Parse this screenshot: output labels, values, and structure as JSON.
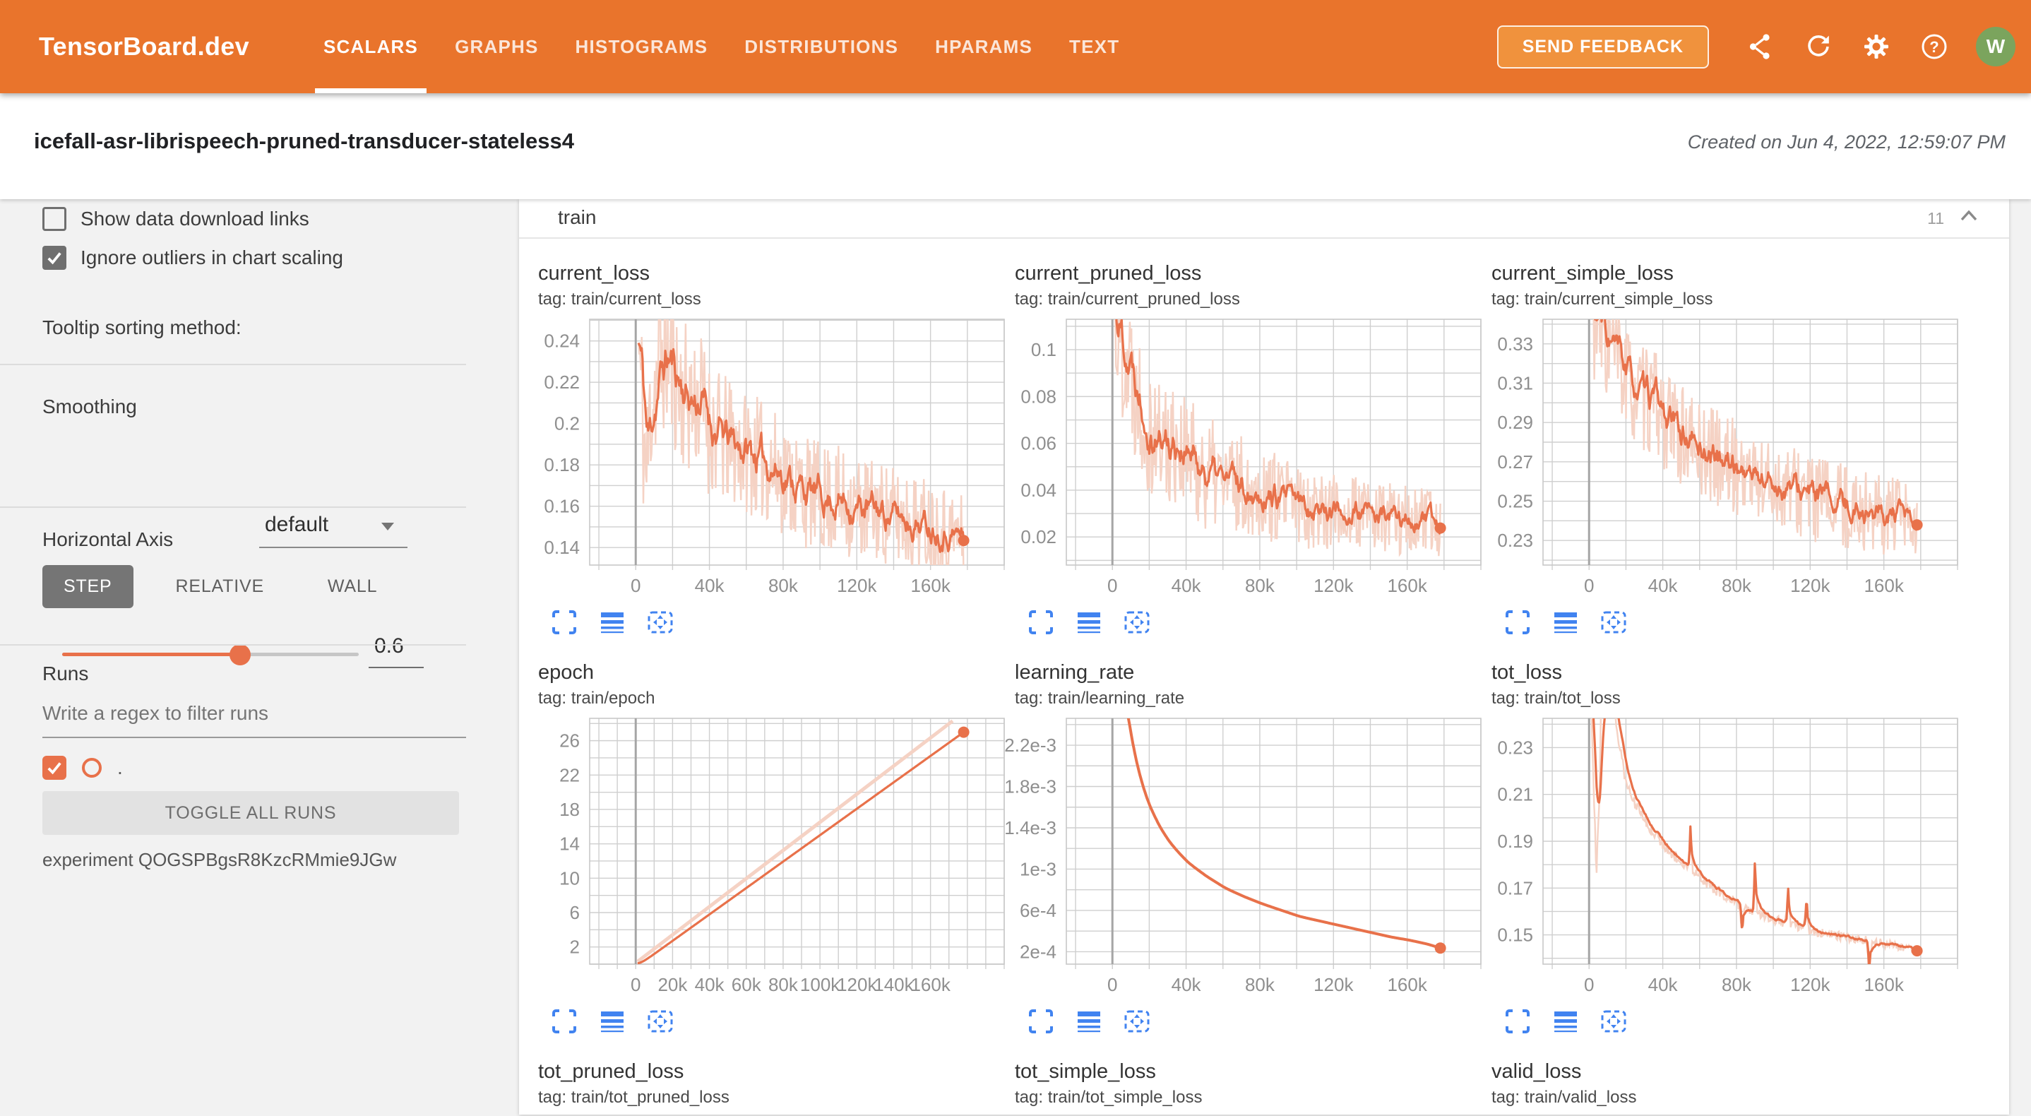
{
  "colors": {
    "navbar": "#e9742c",
    "line": "#e8714a",
    "band": "#f5d2c4",
    "blue": "#4183f0",
    "green": "#7ba45d"
  },
  "navbar": {
    "brand": "TensorBoard.dev",
    "tabs": [
      {
        "label": "SCALARS",
        "active": true
      },
      {
        "label": "GRAPHS",
        "active": false
      },
      {
        "label": "HISTOGRAMS",
        "active": false
      },
      {
        "label": "DISTRIBUTIONS",
        "active": false
      },
      {
        "label": "HPARAMS",
        "active": false
      },
      {
        "label": "TEXT",
        "active": false
      }
    ],
    "send_feedback_label": "SEND FEEDBACK",
    "icon_names": [
      "share-icon",
      "refresh-icon",
      "settings-icon",
      "help-icon"
    ],
    "avatar_initial": "W"
  },
  "header": {
    "experiment_title": "icefall-asr-librispeech-pruned-transducer-stateless4",
    "created_text": "Created on Jun 4, 2022, 12:59:07 PM"
  },
  "sidebar": {
    "show_download_label": "Show data download links",
    "show_download_checked": false,
    "ignore_outliers_label": "Ignore outliers in chart scaling",
    "ignore_outliers_checked": true,
    "tooltip_sorting_label": "Tooltip sorting method:",
    "tooltip_sorting_value": "default",
    "smoothing_label": "Smoothing",
    "smoothing_value": "0.6",
    "horizontal_axis_label": "Horizontal Axis",
    "axis_options": [
      {
        "label": "STEP",
        "active": true
      },
      {
        "label": "RELATIVE",
        "active": false
      },
      {
        "label": "WALL",
        "active": false
      }
    ],
    "runs_label": "Runs",
    "runs_filter_placeholder": "Write a regex to filter runs",
    "run_item_label": ".",
    "run_item_checked": true,
    "toggle_all_label": "TOGGLE ALL RUNS",
    "experiment_label": "experiment QOGSPBgsR8KzcRMmie9JGw"
  },
  "main": {
    "section_title": "train",
    "section_count": "11",
    "chart_action_icons": [
      "expand-icon",
      "line-weight-icon",
      "fit-domain-icon"
    ]
  },
  "chart_data": [
    {
      "type": "line",
      "title": "current_loss",
      "tag": "tag: train/current_loss",
      "plot": true,
      "seed": 11,
      "x_domain": [
        -25000,
        200000
      ],
      "x_minor": 20000,
      "x_ticks": [
        {
          "v": 0,
          "label": "0"
        },
        {
          "v": 40000,
          "label": "40k"
        },
        {
          "v": 80000,
          "label": "80k"
        },
        {
          "v": 120000,
          "label": "120k"
        },
        {
          "v": 160000,
          "label": "160k"
        }
      ],
      "y_domain": [
        0.1315,
        0.2505
      ],
      "y_minor": 0.01,
      "y_ticks": [
        {
          "v": 0.14,
          "label": "0.14"
        },
        {
          "v": 0.16,
          "label": "0.16"
        },
        {
          "v": 0.18,
          "label": "0.18"
        },
        {
          "v": 0.2,
          "label": "0.2"
        },
        {
          "v": 0.22,
          "label": "0.22"
        },
        {
          "v": 0.24,
          "label": "0.24"
        }
      ],
      "trend": [
        [
          1500,
          0.238
        ],
        [
          4000,
          0.2
        ],
        [
          6000,
          0.172
        ],
        [
          8000,
          0.21
        ],
        [
          12000,
          0.225
        ],
        [
          16000,
          0.235
        ],
        [
          20000,
          0.226
        ],
        [
          25000,
          0.215
        ],
        [
          30000,
          0.21
        ],
        [
          35000,
          0.212
        ],
        [
          40000,
          0.198
        ],
        [
          50000,
          0.19
        ],
        [
          60000,
          0.187
        ],
        [
          70000,
          0.181
        ],
        [
          80000,
          0.175
        ],
        [
          90000,
          0.168
        ],
        [
          100000,
          0.164
        ],
        [
          110000,
          0.163
        ],
        [
          120000,
          0.159
        ],
        [
          130000,
          0.158
        ],
        [
          140000,
          0.155
        ],
        [
          150000,
          0.153
        ],
        [
          160000,
          0.151
        ],
        [
          170000,
          0.148
        ],
        [
          178000,
          0.144
        ]
      ],
      "band": [
        [
          0,
          0.045
        ],
        [
          20000,
          0.038
        ],
        [
          60000,
          0.03
        ],
        [
          120000,
          0.026
        ],
        [
          178000,
          0.022
        ]
      ],
      "end_dot": true
    },
    {
      "type": "line",
      "title": "current_pruned_loss",
      "tag": "tag: train/current_pruned_loss",
      "plot": true,
      "seed": 22,
      "x_domain": [
        -25000,
        200000
      ],
      "x_minor": 20000,
      "x_ticks": [
        {
          "v": 0,
          "label": "0"
        },
        {
          "v": 40000,
          "label": "40k"
        },
        {
          "v": 80000,
          "label": "80k"
        },
        {
          "v": 120000,
          "label": "120k"
        },
        {
          "v": 160000,
          "label": "160k"
        }
      ],
      "y_domain": [
        0.008,
        0.113
      ],
      "y_minor": 0.01,
      "y_ticks": [
        {
          "v": 0.02,
          "label": "0.02"
        },
        {
          "v": 0.04,
          "label": "0.04"
        },
        {
          "v": 0.06,
          "label": "0.06"
        },
        {
          "v": 0.08,
          "label": "0.08"
        },
        {
          "v": 0.1,
          "label": "0.1"
        }
      ],
      "trend": [
        [
          1500,
          0.112
        ],
        [
          5000,
          0.105
        ],
        [
          10000,
          0.092
        ],
        [
          15000,
          0.08
        ],
        [
          20000,
          0.068
        ],
        [
          25000,
          0.062
        ],
        [
          30000,
          0.06
        ],
        [
          35000,
          0.062
        ],
        [
          40000,
          0.054
        ],
        [
          50000,
          0.048
        ],
        [
          60000,
          0.044
        ],
        [
          70000,
          0.042
        ],
        [
          80000,
          0.04
        ],
        [
          90000,
          0.036
        ],
        [
          100000,
          0.034
        ],
        [
          110000,
          0.033
        ],
        [
          120000,
          0.031
        ],
        [
          130000,
          0.03
        ],
        [
          140000,
          0.029
        ],
        [
          150000,
          0.028
        ],
        [
          160000,
          0.027
        ],
        [
          170000,
          0.026
        ],
        [
          178000,
          0.0245
        ]
      ],
      "band": [
        [
          0,
          0.035
        ],
        [
          30000,
          0.028
        ],
        [
          80000,
          0.02
        ],
        [
          178000,
          0.014
        ]
      ],
      "end_dot": true
    },
    {
      "type": "line",
      "title": "current_simple_loss",
      "tag": "tag: train/current_simple_loss",
      "plot": true,
      "seed": 33,
      "x_domain": [
        -25000,
        200000
      ],
      "x_minor": 20000,
      "x_ticks": [
        {
          "v": 0,
          "label": "0"
        },
        {
          "v": 40000,
          "label": "40k"
        },
        {
          "v": 80000,
          "label": "80k"
        },
        {
          "v": 120000,
          "label": "120k"
        },
        {
          "v": 160000,
          "label": "160k"
        }
      ],
      "y_domain": [
        0.2175,
        0.3425
      ],
      "y_minor": 0.01,
      "y_ticks": [
        {
          "v": 0.23,
          "label": "0.23"
        },
        {
          "v": 0.25,
          "label": "0.25"
        },
        {
          "v": 0.27,
          "label": "0.27"
        },
        {
          "v": 0.29,
          "label": "0.29"
        },
        {
          "v": 0.31,
          "label": "0.31"
        },
        {
          "v": 0.33,
          "label": "0.33"
        }
      ],
      "trend": [
        [
          1500,
          0.345
        ],
        [
          5000,
          0.338
        ],
        [
          10000,
          0.33
        ],
        [
          15000,
          0.322
        ],
        [
          20000,
          0.312
        ],
        [
          25000,
          0.305
        ],
        [
          30000,
          0.3
        ],
        [
          35000,
          0.302
        ],
        [
          40000,
          0.292
        ],
        [
          50000,
          0.283
        ],
        [
          60000,
          0.276
        ],
        [
          70000,
          0.272
        ],
        [
          80000,
          0.267
        ],
        [
          90000,
          0.262
        ],
        [
          100000,
          0.258
        ],
        [
          110000,
          0.256
        ],
        [
          120000,
          0.252
        ],
        [
          130000,
          0.25
        ],
        [
          140000,
          0.247
        ],
        [
          150000,
          0.245
        ],
        [
          160000,
          0.243
        ],
        [
          170000,
          0.24
        ],
        [
          178000,
          0.235
        ]
      ],
      "band": [
        [
          0,
          0.032
        ],
        [
          40000,
          0.026
        ],
        [
          178000,
          0.02
        ]
      ],
      "end_dot": true
    },
    {
      "type": "line",
      "title": "epoch",
      "tag": "tag: train/epoch",
      "plot": true,
      "seed": 44,
      "x_domain": [
        -25000,
        200000
      ],
      "x_minor": 10000,
      "x_ticks": [
        {
          "v": 0,
          "label": "0"
        },
        {
          "v": 20000,
          "label": "20k"
        },
        {
          "v": 40000,
          "label": "40k"
        },
        {
          "v": 60000,
          "label": "60k"
        },
        {
          "v": 80000,
          "label": "80k"
        },
        {
          "v": 100000,
          "label": "100k"
        },
        {
          "v": 120000,
          "label": "120k"
        },
        {
          "v": 140000,
          "label": "140k"
        },
        {
          "v": 160000,
          "label": "160k"
        }
      ],
      "y_domain": [
        0,
        28.6
      ],
      "y_minor": 2,
      "y_ticks": [
        {
          "v": 2,
          "label": "2"
        },
        {
          "v": 6,
          "label": "6"
        },
        {
          "v": 10,
          "label": "10"
        },
        {
          "v": 14,
          "label": "14"
        },
        {
          "v": 18,
          "label": "18"
        },
        {
          "v": 22,
          "label": "22"
        },
        {
          "v": 26,
          "label": "26"
        }
      ],
      "trend": [
        [
          1000,
          0.1
        ],
        [
          178000,
          27.3
        ]
      ],
      "band_line": [
        [
          1000,
          0.3
        ],
        [
          172000,
          28.3
        ]
      ],
      "end_dot": true
    },
    {
      "type": "line",
      "title": "learning_rate",
      "tag": "tag: train/learning_rate",
      "plot": true,
      "seed": 55,
      "x_domain": [
        -25000,
        200000
      ],
      "x_minor": 20000,
      "x_ticks": [
        {
          "v": 0,
          "label": "0"
        },
        {
          "v": 40000,
          "label": "40k"
        },
        {
          "v": 80000,
          "label": "80k"
        },
        {
          "v": 120000,
          "label": "120k"
        },
        {
          "v": 160000,
          "label": "160k"
        }
      ],
      "y_domain": [
        8e-05,
        0.00246
      ],
      "y_minor": 0.0002,
      "y_ticks": [
        {
          "v": 0.0002,
          "label": "2e-4"
        },
        {
          "v": 0.0006,
          "label": "6e-4"
        },
        {
          "v": 0.001,
          "label": "1e-3"
        },
        {
          "v": 0.0014,
          "label": "1.4e-3"
        },
        {
          "v": 0.0018,
          "label": "1.8e-3"
        },
        {
          "v": 0.0022,
          "label": "2.2e-3"
        }
      ],
      "trend": [
        [
          6000,
          0.00265
        ],
        [
          8000,
          0.00235
        ],
        [
          10000,
          0.00212
        ],
        [
          12000,
          0.00196
        ],
        [
          14000,
          0.00183
        ],
        [
          16000,
          0.00172
        ],
        [
          18000,
          0.00162
        ],
        [
          20000,
          0.00154
        ],
        [
          25000,
          0.00137
        ],
        [
          30000,
          0.00124
        ],
        [
          35000,
          0.00114
        ],
        [
          40000,
          0.00105
        ],
        [
          50000,
          0.00092
        ],
        [
          60000,
          0.00081
        ],
        [
          70000,
          0.00073
        ],
        [
          80000,
          0.00066
        ],
        [
          90000,
          0.0006
        ],
        [
          100000,
          0.00054
        ],
        [
          110000,
          0.0005
        ],
        [
          120000,
          0.00046
        ],
        [
          130000,
          0.00042
        ],
        [
          140000,
          0.00038
        ],
        [
          150000,
          0.00034
        ],
        [
          160000,
          0.00031
        ],
        [
          170000,
          0.00027
        ],
        [
          178000,
          0.000225
        ]
      ],
      "line_width": 4,
      "end_dot": true
    },
    {
      "type": "line",
      "title": "tot_loss",
      "tag": "tag: train/tot_loss",
      "plot": true,
      "seed": 66,
      "x_domain": [
        -25000,
        200000
      ],
      "x_minor": 20000,
      "x_ticks": [
        {
          "v": 0,
          "label": "0"
        },
        {
          "v": 40000,
          "label": "40k"
        },
        {
          "v": 80000,
          "label": "80k"
        },
        {
          "v": 120000,
          "label": "120k"
        },
        {
          "v": 160000,
          "label": "160k"
        }
      ],
      "y_domain": [
        0.1375,
        0.2425
      ],
      "y_minor": 0.01,
      "y_ticks": [
        {
          "v": 0.15,
          "label": "0.15"
        },
        {
          "v": 0.17,
          "label": "0.17"
        },
        {
          "v": 0.19,
          "label": "0.19"
        },
        {
          "v": 0.21,
          "label": "0.21"
        },
        {
          "v": 0.23,
          "label": "0.23"
        }
      ],
      "trend": [
        [
          1000,
          0.26
        ],
        [
          2500,
          0.21
        ],
        [
          4000,
          0.178
        ],
        [
          5500,
          0.21
        ],
        [
          7000,
          0.26
        ],
        [
          12000,
          0.262
        ],
        [
          14000,
          0.245
        ],
        [
          17000,
          0.228
        ],
        [
          20000,
          0.215
        ],
        [
          25000,
          0.206
        ],
        [
          30000,
          0.199
        ],
        [
          40000,
          0.189
        ],
        [
          50000,
          0.181
        ],
        [
          60000,
          0.1745
        ],
        [
          70000,
          0.1685
        ],
        [
          80000,
          0.1635
        ],
        [
          90000,
          0.16
        ],
        [
          100000,
          0.1565
        ],
        [
          110000,
          0.1545
        ],
        [
          120000,
          0.152
        ],
        [
          130000,
          0.1503
        ],
        [
          140000,
          0.1489
        ],
        [
          150000,
          0.1478
        ],
        [
          160000,
          0.1462
        ],
        [
          170000,
          0.145
        ],
        [
          178000,
          0.1435
        ]
      ],
      "band": [
        [
          0,
          0.004
        ],
        [
          15000,
          0.0025
        ],
        [
          178000,
          0.0018
        ]
      ],
      "spikes": [
        [
          55000,
          0.016
        ],
        [
          83000,
          -0.011
        ],
        [
          90000,
          0.02
        ],
        [
          108000,
          0.014
        ],
        [
          118000,
          0.011
        ],
        [
          152000,
          -0.012
        ]
      ],
      "end_dot": true
    },
    {
      "type": "line",
      "title": "tot_pruned_loss",
      "tag": "tag: train/tot_pruned_loss",
      "plot": false
    },
    {
      "type": "line",
      "title": "tot_simple_loss",
      "tag": "tag: train/tot_simple_loss",
      "plot": false
    },
    {
      "type": "line",
      "title": "valid_loss",
      "tag": "tag: train/valid_loss",
      "plot": false
    }
  ]
}
